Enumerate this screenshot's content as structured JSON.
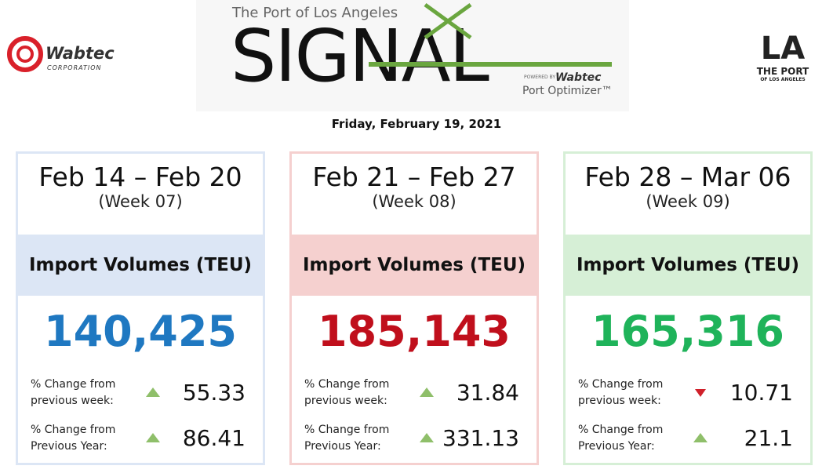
{
  "header": {
    "left_logo": {
      "name": "Wabtec",
      "sub": "CORPORATION"
    },
    "center_logo": {
      "overline": "The Port of Los Angeles",
      "title": "SIGNAL",
      "powered": "POWERED BY",
      "powered_brand": "Wabtec",
      "product": "Port Optimizer™"
    },
    "right_logo": {
      "mark": "LA",
      "name": "THE PORT",
      "sub": "OF LOS ANGELES"
    },
    "date": "Friday, February 19, 2021"
  },
  "cards": [
    {
      "period": "Feb 14 – Feb 20",
      "week": "(Week 07)",
      "label": "Import Volumes (TEU)",
      "volume": "140,425",
      "volume_color": "#1f78c1",
      "band_color": "#dce6f5",
      "border_color": "#dce6f5",
      "changes": [
        {
          "label": "% Change from previous week:",
          "value": 55.33,
          "trend": "up"
        },
        {
          "label": "% Change from Previous Year:",
          "value": 86.41,
          "trend": "up"
        }
      ]
    },
    {
      "period": "Feb 21 – Feb 27",
      "week": "(Week 08)",
      "label": "Import Volumes (TEU)",
      "volume": "185,143",
      "volume_color": "#c00f1c",
      "band_color": "#f5d0cf",
      "border_color": "#f5d0cf",
      "changes": [
        {
          "label": "% Change from previous week:",
          "value": 31.84,
          "trend": "up"
        },
        {
          "label": "% Change from Previous Year:",
          "value": 331.13,
          "trend": "up"
        }
      ]
    },
    {
      "period": "Feb 28 – Mar 06",
      "week": "(Week 09)",
      "label": "Import Volumes (TEU)",
      "volume": "165,316",
      "volume_color": "#1fb35a",
      "band_color": "#d6efd6",
      "border_color": "#d6efd6",
      "changes": [
        {
          "label": "% Change from previous week:",
          "value": 10.71,
          "trend": "down"
        },
        {
          "label": "% Change from Previous Year:",
          "value": 21.1,
          "trend": "up"
        }
      ]
    }
  ]
}
